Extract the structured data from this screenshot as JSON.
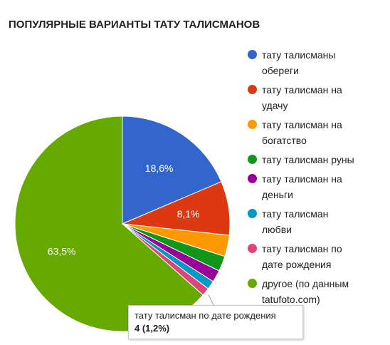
{
  "chart_data": {
    "type": "pie",
    "title": "ПОПУЛЯРНЫЕ ВАРИАНТЫ ТАТУ ТАЛИСМАНОВ",
    "legend_position": "right",
    "slices": [
      {
        "label": "тату талисманы обереги",
        "value": 18.6,
        "display": "18,6%",
        "color": "#3366cc"
      },
      {
        "label": "тату талисман на удачу",
        "value": 8.1,
        "display": "8,1%",
        "color": "#dc3912"
      },
      {
        "label": "тату талисман на богатство",
        "value": 3.2,
        "display": "",
        "color": "#ff9900"
      },
      {
        "label": "тату талисман руны",
        "value": 2.3,
        "display": "",
        "color": "#109618"
      },
      {
        "label": "тату талисман на деньги",
        "value": 1.8,
        "display": "",
        "color": "#990099"
      },
      {
        "label": "тату талисман любви",
        "value": 1.3,
        "display": "",
        "color": "#0099c6"
      },
      {
        "label": "тату талисман по дате рождения",
        "value": 1.2,
        "display": "",
        "color": "#dd4477"
      },
      {
        "label": "другое (по данным tatufoto.com)",
        "value": 63.5,
        "display": "63,5%",
        "color": "#66aa00"
      }
    ]
  },
  "tooltip": {
    "label": "тату талисман по дате рождения",
    "value": "4 (1,2%)"
  }
}
